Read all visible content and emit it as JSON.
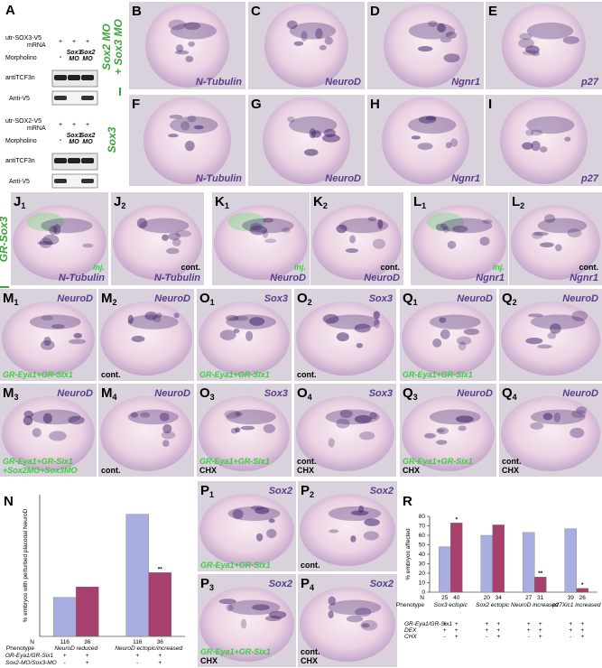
{
  "panel_a": {
    "label": "A",
    "blots": [
      {
        "mrna": [
          "utr-SOX3-V5",
          "mRNA"
        ],
        "mrna_signs": [
          "+",
          "+",
          "+"
        ],
        "morpholino": "Morpholino",
        "lanes": [
          [
            "-"
          ],
          [
            "Sox3",
            "MO"
          ],
          [
            "Sox2",
            "MO"
          ]
        ],
        "bands": [
          "antiTCF3n",
          "Anti-V5"
        ]
      },
      {
        "mrna": [
          "utr-SOX2-V5",
          "mRNA"
        ],
        "mrna_signs": [
          "+",
          "+",
          "+"
        ],
        "morpholino": "Morpholino",
        "lanes": [
          [
            "-"
          ],
          [
            "Sox3",
            "MO"
          ],
          [
            "Sox2",
            "MO"
          ]
        ],
        "bands": [
          "antiTCF3n",
          "Anti-V5"
        ]
      }
    ]
  },
  "row_labels": [
    [
      "Sox2 MO",
      "+ Sox3 MO"
    ],
    [
      "Sox3"
    ],
    [
      "GR-Sox3"
    ]
  ],
  "panels": [
    {
      "letter": "B",
      "marker": "N-Tubulin"
    },
    {
      "letter": "C",
      "marker": "NeuroD"
    },
    {
      "letter": "D",
      "marker": "Ngnr1"
    },
    {
      "letter": "E",
      "marker": "p27"
    },
    {
      "letter": "F",
      "marker": "N-Tubulin"
    },
    {
      "letter": "G",
      "marker": "NeuroD"
    },
    {
      "letter": "H",
      "marker": "Ngnr1"
    },
    {
      "letter": "I",
      "marker": "p27"
    },
    {
      "letter": "J",
      "sub": "1",
      "marker": "N-Tubulin",
      "treatment": [
        "inj."
      ]
    },
    {
      "letter": "J",
      "sub": "2",
      "marker": "N-Tubulin",
      "notes": [
        "cont."
      ]
    },
    {
      "letter": "K",
      "sub": "1",
      "marker": "NeuroD",
      "treatment": [
        "inj."
      ]
    },
    {
      "letter": "K",
      "sub": "2",
      "marker": "NeuroD",
      "notes": [
        "cont."
      ]
    },
    {
      "letter": "L",
      "sub": "1",
      "marker": "Ngnr1",
      "treatment": [
        "inj."
      ]
    },
    {
      "letter": "L",
      "sub": "2",
      "marker": "Ngnr1",
      "notes": [
        "cont."
      ]
    },
    {
      "letter": "M",
      "sub": "1",
      "marker": "NeuroD",
      "treatment": [
        "GR-Eya1+GR-Six1"
      ]
    },
    {
      "letter": "M",
      "sub": "2",
      "marker": "NeuroD",
      "notes": [
        "cont."
      ]
    },
    {
      "letter": "M",
      "sub": "3",
      "marker": "NeuroD",
      "treatment": [
        "GR-Eya1+GR-Six1",
        "+Sox2MO+Sox3MO"
      ]
    },
    {
      "letter": "M",
      "sub": "4",
      "marker": "NeuroD",
      "notes": [
        "cont."
      ]
    },
    {
      "letter": "O",
      "sub": "1",
      "marker": "Sox3",
      "treatment": [
        "GR-Eya1+GR-Six1"
      ]
    },
    {
      "letter": "O",
      "sub": "2",
      "marker": "Sox3",
      "notes": [
        "cont."
      ]
    },
    {
      "letter": "O",
      "sub": "3",
      "marker": "Sox3",
      "treatment": [
        "GR-Eya1+GR-Six1"
      ],
      "notes": [
        "CHX"
      ]
    },
    {
      "letter": "O",
      "sub": "4",
      "marker": "Sox3",
      "notes": [
        "cont.",
        "CHX"
      ]
    },
    {
      "letter": "Q",
      "sub": "1",
      "marker": "NeuroD",
      "treatment": [
        "GR-Eya1+GR-Six1"
      ]
    },
    {
      "letter": "Q",
      "sub": "2",
      "marker": "NeuroD"
    },
    {
      "letter": "Q",
      "sub": "3",
      "marker": "NeuroD",
      "treatment": [
        "GR-Eya1+GR-Six1"
      ],
      "notes": [
        "CHX"
      ]
    },
    {
      "letter": "Q",
      "sub": "4",
      "marker": "NeuroD",
      "notes": [
        "cont.",
        "CHX"
      ]
    },
    {
      "letter": "P",
      "sub": "1",
      "marker": "Sox2",
      "treatment": [
        "GR-Eya1+GR-Six1"
      ]
    },
    {
      "letter": "P",
      "sub": "2",
      "marker": "Sox2",
      "notes": [
        "cont."
      ]
    },
    {
      "letter": "P",
      "sub": "3",
      "marker": "Sox2",
      "treatment": [
        "GR-Eya1+GR-Six1"
      ],
      "notes": [
        "CHX"
      ]
    },
    {
      "letter": "P",
      "sub": "4",
      "marker": "Sox2",
      "notes": [
        "cont.",
        "CHX"
      ]
    }
  ],
  "chart_data": [
    {
      "type": "bar",
      "panel_label": "N",
      "ylabel": "% embryos with perturbed placodal NeuroD",
      "categories": [
        "NeuroD reduced",
        "NeuroD ectopic/increased"
      ],
      "series": [
        {
          "color": "#a9aee0",
          "values": [
            22,
            69
          ]
        },
        {
          "color": "#a8406e",
          "values": [
            28,
            36
          ],
          "annotations": [
            null,
            "**"
          ]
        }
      ],
      "ylim": [
        0,
        80
      ],
      "n_label": "N",
      "n": [
        [
          116,
          36
        ],
        [
          116,
          36
        ]
      ],
      "phenotype_label": "Phenotype",
      "conditions": [
        {
          "label": "GR-Eya1/GR-Six1",
          "signs": [
            "+",
            "+",
            "+",
            "+"
          ]
        },
        {
          "label": "Sox2-MO/Sox3-MO",
          "signs": [
            "-",
            "+",
            "-",
            "+"
          ]
        }
      ]
    },
    {
      "type": "bar",
      "panel_label": "R",
      "ylabel": "% embryos affected",
      "categories": [
        "Sox3 ectopic",
        "Sox2 ectopic",
        "NeuroD increased",
        "p27Xic1 increased"
      ],
      "series": [
        {
          "color": "#a9aee0",
          "values": [
            48,
            60,
            63,
            67
          ]
        },
        {
          "color": "#a8406e",
          "values": [
            73,
            71,
            16,
            4
          ],
          "annotations": [
            "*",
            null,
            "**",
            "*"
          ]
        }
      ],
      "ylim": [
        0,
        80
      ],
      "yticks": [
        0,
        10,
        20,
        30,
        40,
        50,
        60,
        70,
        80
      ],
      "n_label": "N",
      "n": [
        [
          25,
          40
        ],
        [
          20,
          34
        ],
        [
          27,
          31
        ],
        [
          39,
          26
        ]
      ],
      "phenotype_label": "Phenotype",
      "conditions": [
        {
          "label": "GR-Eya1/GR-Six1",
          "signs": [
            "+",
            "+",
            "+",
            "+",
            "+",
            "+",
            "+",
            "+"
          ]
        },
        {
          "label": "DEX",
          "signs": [
            "+",
            "+",
            "+",
            "+",
            "+",
            "+",
            "+",
            "+"
          ]
        },
        {
          "label": "CHX",
          "signs": [
            "-",
            "+",
            "-",
            "+",
            "-",
            "+",
            "-",
            "+"
          ]
        }
      ]
    }
  ]
}
